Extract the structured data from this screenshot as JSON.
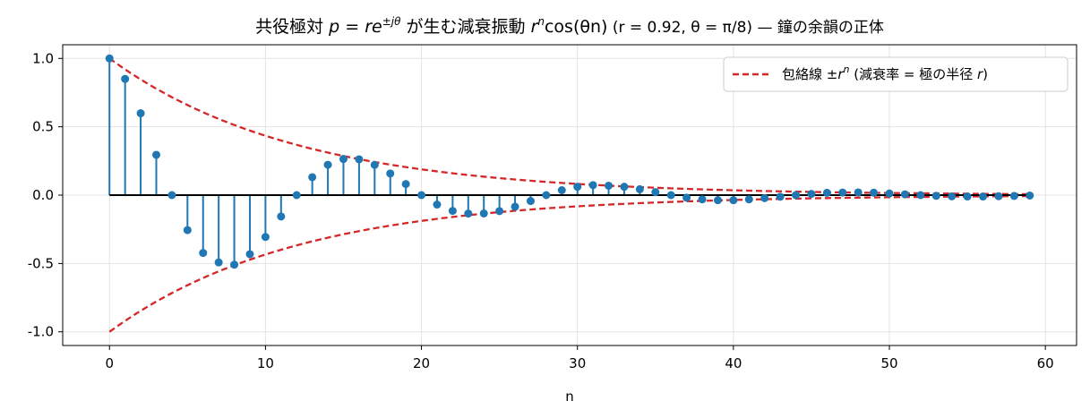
{
  "chart_data": {
    "type": "stem",
    "title": {
      "prefix": "共役極対 ",
      "pole_var": "p",
      "equals": " = ",
      "r_var": "r",
      "e_var": "e",
      "exponent": "±jθ",
      "middle": " が生む減衰振動 ",
      "rn_var": "r",
      "rn_exp": "n",
      "cos_expr": "cos(θn)",
      "params": "  (r = 0.92,  θ = π/8) — 鐘の余韻の正体"
    },
    "xlabel": "n",
    "ylabel": "",
    "xlim": [
      -3,
      62
    ],
    "ylim": [
      -1.1,
      1.1
    ],
    "xticks": [
      0,
      10,
      20,
      30,
      40,
      50,
      60
    ],
    "yticks": [
      -1.0,
      -0.5,
      0.0,
      0.5,
      1.0
    ],
    "ytick_labels": [
      "-1.0",
      "-0.5",
      "0.0",
      "0.5",
      "1.0"
    ],
    "grid": true,
    "n": [
      0,
      1,
      2,
      3,
      4,
      5,
      6,
      7,
      8,
      9,
      10,
      11,
      12,
      13,
      14,
      15,
      16,
      17,
      18,
      19,
      20,
      21,
      22,
      23,
      24,
      25,
      26,
      27,
      28,
      29,
      30,
      31,
      32,
      33,
      34,
      35,
      36,
      37,
      38,
      39,
      40,
      41,
      42,
      43,
      44,
      45,
      46,
      47,
      48,
      49,
      50,
      51,
      52,
      53,
      54,
      55,
      56,
      57,
      58,
      59
    ],
    "y": [
      1.0,
      0.85,
      0.599,
      0.295,
      0.0,
      -0.256,
      -0.423,
      -0.492,
      -0.509,
      -0.432,
      -0.306,
      -0.156,
      0.0,
      0.131,
      0.222,
      0.264,
      0.262,
      0.221,
      0.158,
      0.081,
      0.0,
      -0.069,
      -0.115,
      -0.135,
      -0.134,
      -0.117,
      -0.085,
      -0.043,
      0.0,
      0.036,
      0.061,
      0.073,
      0.069,
      0.061,
      0.043,
      0.022,
      0.0,
      -0.019,
      -0.031,
      -0.037,
      -0.037,
      -0.031,
      -0.022,
      -0.012,
      0.0,
      0.009,
      0.017,
      0.019,
      0.02,
      0.018,
      0.012,
      0.006,
      0.0,
      -0.005,
      -0.009,
      -0.01,
      -0.01,
      -0.008,
      -0.006,
      -0.003
    ],
    "envelope": {
      "r": 0.92,
      "legend_label": {
        "prefix": "包絡線 ±",
        "var": "r",
        "exp": "n",
        "suffix": " (減衰率 = 極の半径 ",
        "var2": "r",
        "end": ")"
      }
    },
    "legend_position": "upper right",
    "colors": {
      "stem": "#1f77b4",
      "envelope": "#d62728",
      "baseline": "#000000",
      "grid": "#e3e3e3"
    }
  }
}
